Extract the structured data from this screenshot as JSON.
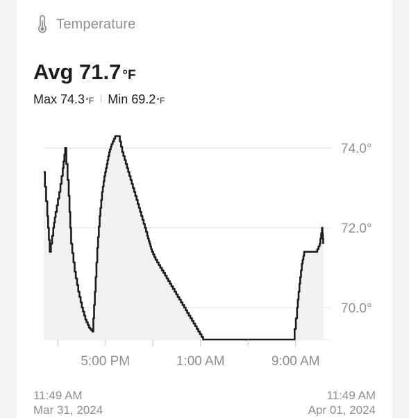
{
  "header": {
    "title": "Temperature",
    "icon": "thermometer-icon"
  },
  "summary": {
    "avg_label": "Avg",
    "avg_value": "71.7",
    "unit": "°F",
    "max_label": "Max",
    "max_value": "74.3",
    "min_label": "Min",
    "min_value": "69.2"
  },
  "range": {
    "start_time": "11:49 AM",
    "start_date": "Mar 31, 2024",
    "end_time": "11:49 AM",
    "end_date": "Apr 01, 2024"
  },
  "colors": {
    "line": "#1c1c1e",
    "fill": "#f1f1f2",
    "grid": "#e5e5ea",
    "axis_text": "#8e8e93"
  },
  "chart_data": {
    "type": "line",
    "x_unit": "hours since 11:49 AM Mar 31, 2024",
    "x": [
      0.0,
      0.3,
      0.5,
      0.8,
      1.0,
      1.3,
      1.6,
      1.8,
      2.1,
      2.3,
      2.6,
      2.9,
      3.2,
      3.5,
      3.8,
      4.1,
      4.3,
      4.5,
      4.7,
      4.9,
      5.1,
      5.3,
      5.5,
      5.7,
      6.0,
      6.3,
      6.6,
      6.9,
      7.2,
      7.5,
      7.8,
      8.1,
      8.4,
      8.7,
      8.9,
      9.1,
      9.4,
      9.8,
      10.2,
      10.6,
      11.0,
      11.4,
      11.8,
      12.2,
      12.6,
      13.0,
      13.4,
      13.8,
      14.2,
      14.6,
      15.0,
      15.4,
      15.8,
      16.2,
      16.6,
      17.0,
      17.4,
      17.8,
      18.2,
      18.6,
      19.0,
      19.4,
      19.8,
      20.2,
      20.6,
      21.0,
      21.3,
      21.5,
      21.7,
      21.9,
      22.1,
      22.5,
      22.9,
      23.2,
      23.4,
      23.5
    ],
    "y": [
      73.4,
      72.3,
      71.4,
      72.0,
      72.4,
      72.9,
      73.5,
      74.0,
      72.8,
      71.6,
      70.9,
      70.4,
      70.0,
      69.7,
      69.5,
      69.4,
      70.4,
      71.5,
      72.3,
      72.9,
      73.3,
      73.6,
      73.9,
      74.1,
      74.3,
      74.3,
      73.9,
      73.6,
      73.3,
      73.0,
      72.7,
      72.4,
      72.1,
      71.8,
      71.6,
      71.4,
      71.2,
      71.0,
      70.8,
      70.6,
      70.4,
      70.2,
      70.0,
      69.8,
      69.6,
      69.4,
      69.2,
      69.2,
      69.2,
      69.2,
      69.2,
      69.2,
      69.2,
      69.2,
      69.2,
      69.2,
      69.2,
      69.2,
      69.2,
      69.2,
      69.2,
      69.2,
      69.2,
      69.2,
      69.2,
      69.2,
      70.0,
      70.6,
      71.1,
      71.4,
      71.4,
      71.4,
      71.4,
      71.6,
      72.0,
      71.6
    ],
    "yticks": [
      "74.0°",
      "72.0°",
      "70.0°"
    ],
    "ytick_values": [
      74.0,
      72.0,
      70.0
    ],
    "xticks": [
      "5:00 PM",
      "1:00 AM",
      "9:00 AM"
    ],
    "xtick_values": [
      5.18,
      13.18,
      21.18
    ],
    "minor_xtick_values": [
      1.18,
      9.18,
      17.18
    ],
    "ylim": [
      69.2,
      74.3
    ],
    "xlim": [
      0,
      24
    ],
    "grid": true,
    "legend": "none"
  }
}
